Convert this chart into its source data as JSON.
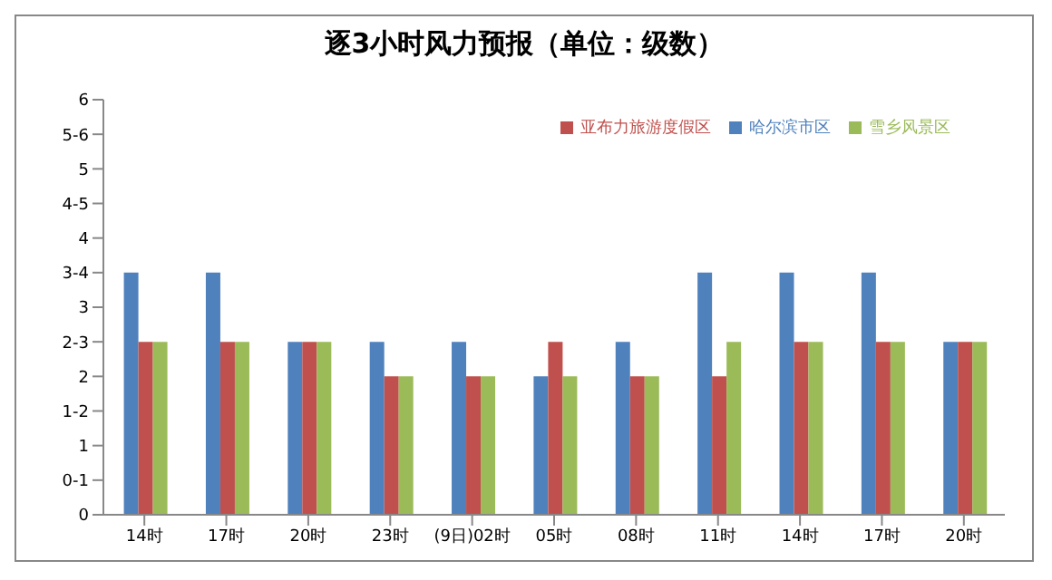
{
  "chart_data": {
    "type": "bar",
    "title": "逐3小时风力预报（单位：级数）",
    "categories": [
      "14时",
      "17时",
      "20时",
      "23时",
      "(9日)02时",
      "05时",
      "08时",
      "11时",
      "14时",
      "17时",
      "20时"
    ],
    "series": [
      {
        "name": "哈尔滨市区",
        "color": "#4f81bd",
        "values": [
          3.5,
          3.5,
          2.5,
          2.5,
          2.5,
          2,
          2.5,
          3.5,
          3.5,
          3.5,
          2.5
        ]
      },
      {
        "name": "亚布力旅游度假区",
        "color": "#c0504d",
        "values": [
          2.5,
          2.5,
          2.5,
          2,
          2,
          2.5,
          2,
          2,
          2.5,
          2.5,
          2.5
        ]
      },
      {
        "name": "雪乡风景区",
        "color": "#9bbb59",
        "values": [
          2.5,
          2.5,
          2.5,
          2,
          2,
          2,
          2,
          2.5,
          2.5,
          2.5,
          2.5
        ]
      }
    ],
    "ylim": [
      0,
      6
    ],
    "yticks": [
      0,
      {
        "value": 0.5,
        "label": "0-1"
      },
      1,
      {
        "value": 1.5,
        "label": "1-2"
      },
      2,
      {
        "value": 2.5,
        "label": "2-3"
      },
      3,
      {
        "value": 3.5,
        "label": "3-4"
      },
      4,
      {
        "value": 4.5,
        "label": "4-5"
      },
      5,
      {
        "value": 5.5,
        "label": "5-6"
      },
      6
    ],
    "grid": false,
    "legend": "top right"
  }
}
